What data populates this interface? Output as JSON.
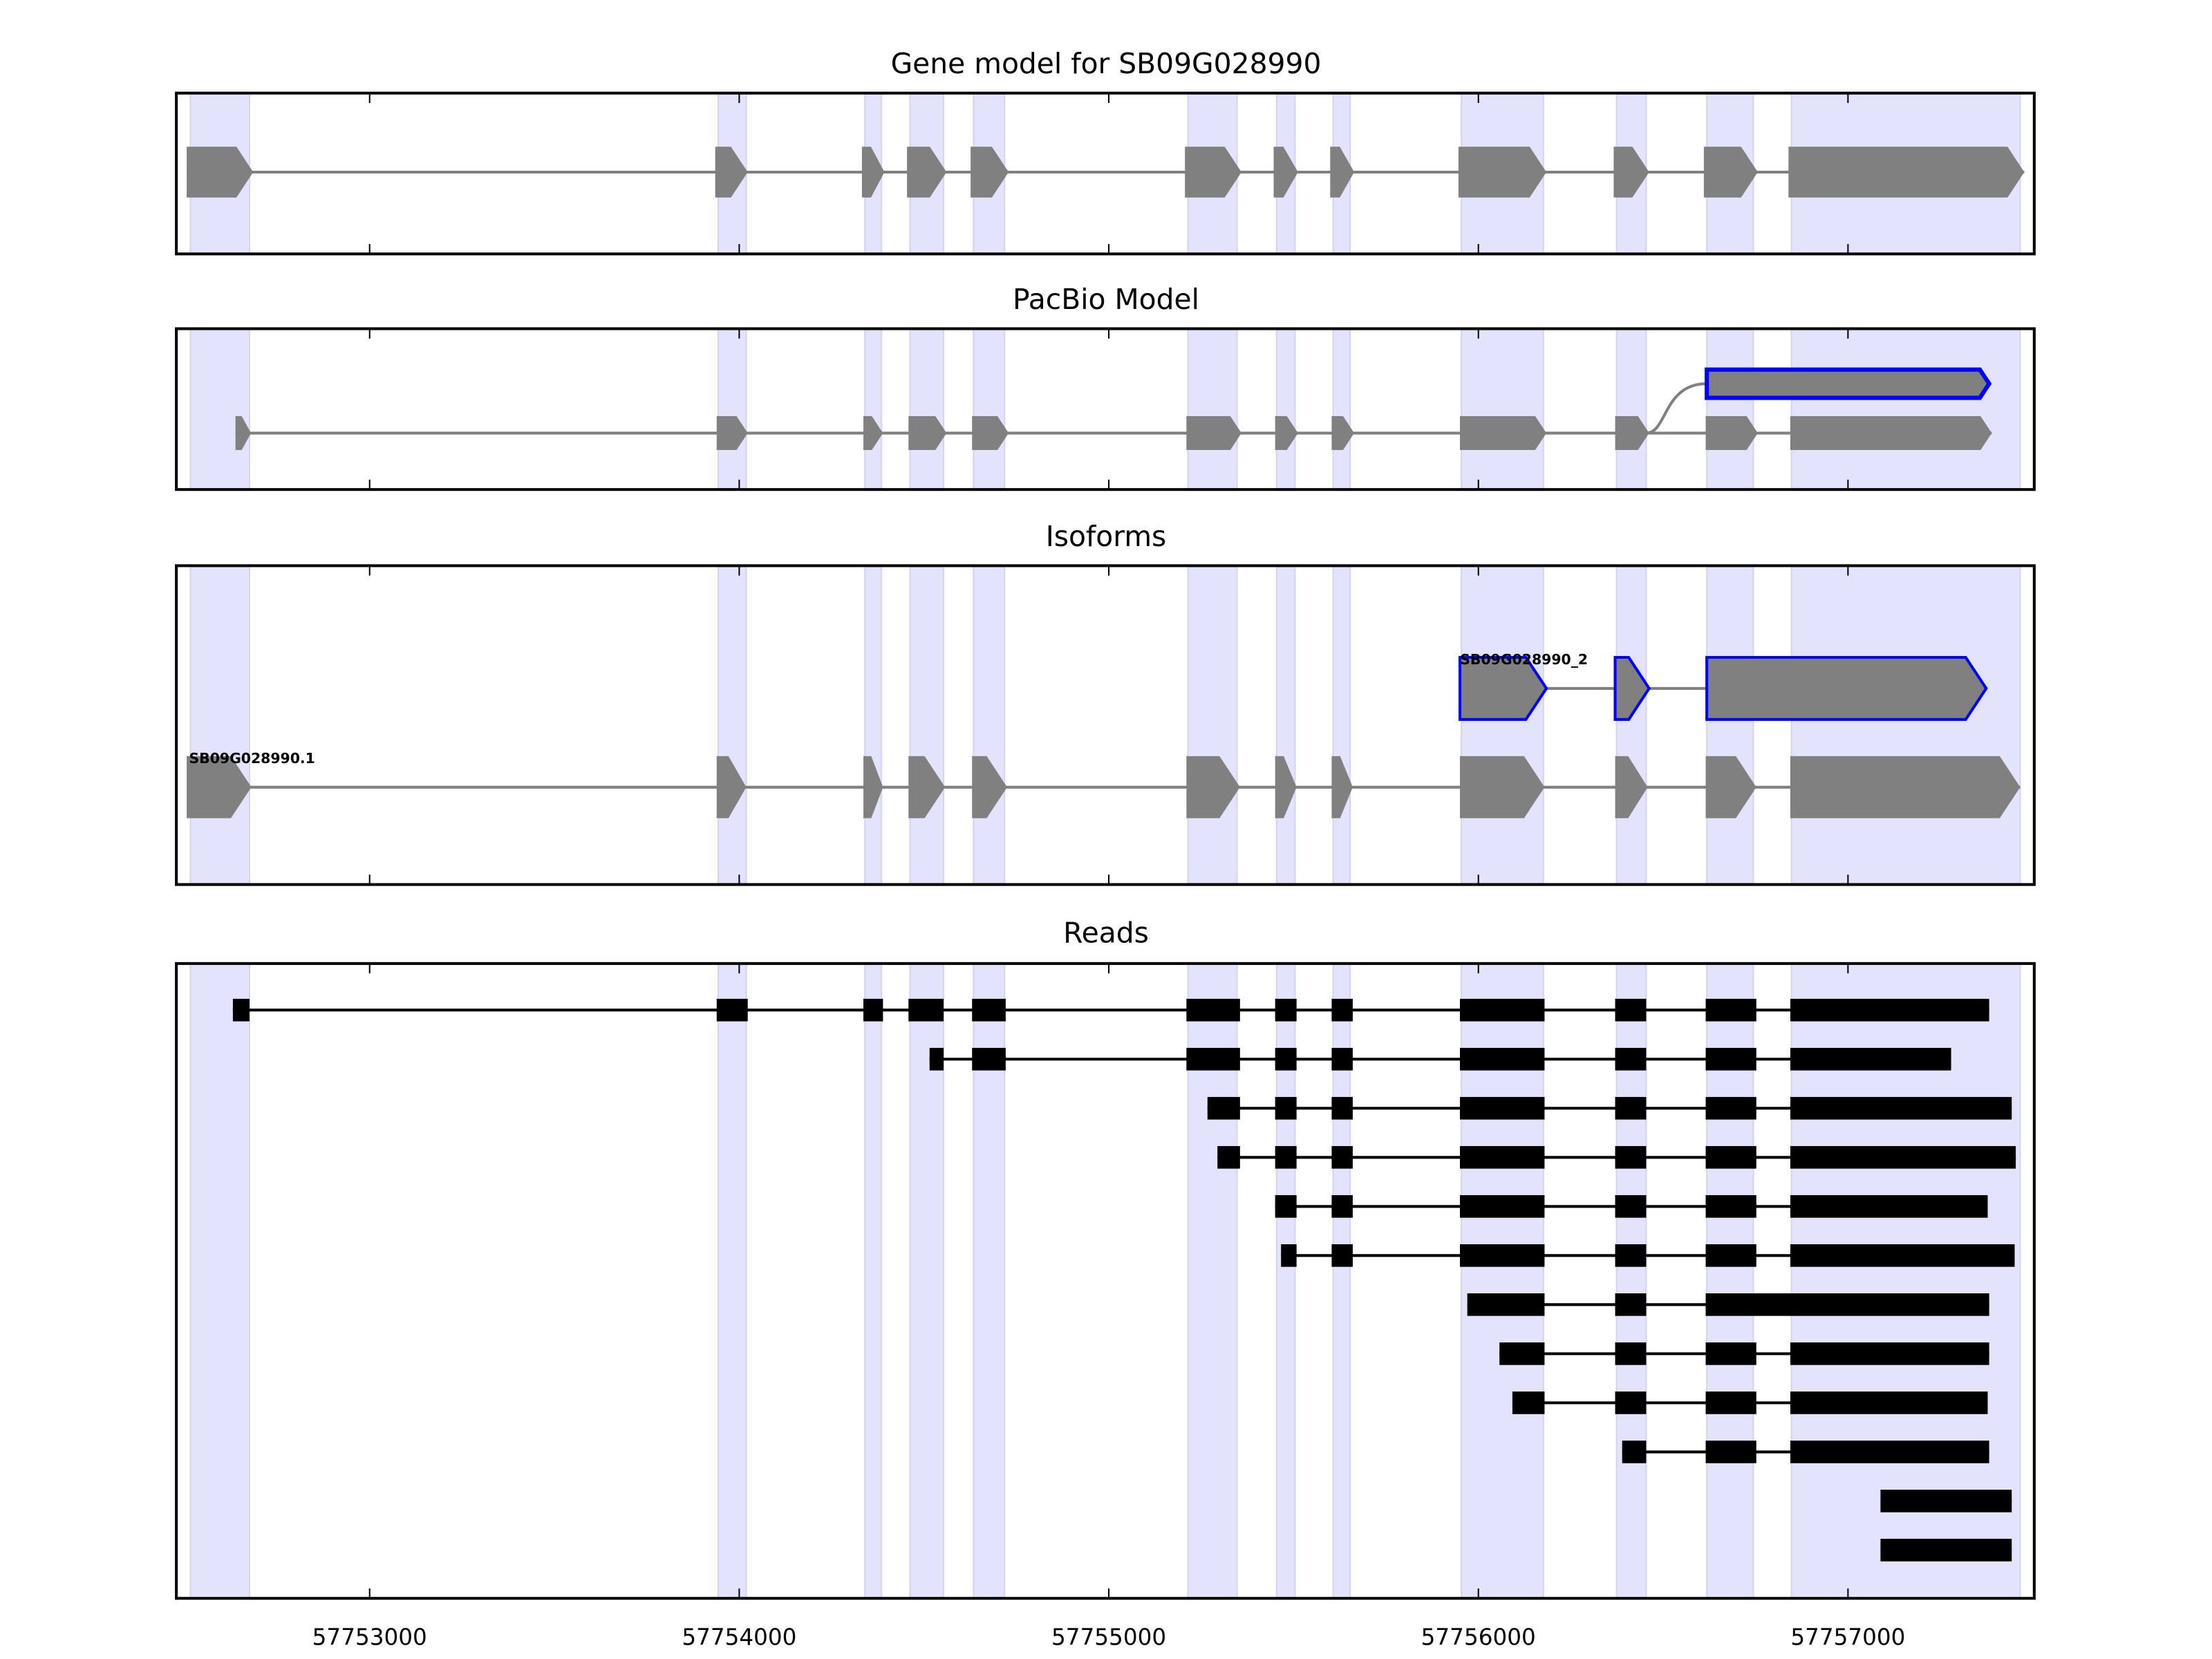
{
  "chart_data": [
    {
      "type": "gene-track",
      "title": "Gene model for SB09G028990",
      "xlim": [
        57752477,
        57757504
      ],
      "shaded_exons": [
        [
          57752515,
          57752675
        ],
        [
          57753943,
          57754019
        ],
        [
          57754340,
          57754385
        ],
        [
          57754462,
          57754553
        ],
        [
          57754634,
          57754718
        ],
        [
          57755214,
          57755347
        ],
        [
          57755454,
          57755504
        ],
        [
          57755607,
          57755653
        ],
        [
          57755954,
          57756176
        ],
        [
          57756374,
          57756454
        ],
        [
          57756618,
          57756744
        ],
        [
          57756847,
          57757466
        ]
      ],
      "tracks": [
        {
          "exons": [
            [
              57752505,
              57752685
            ],
            [
              57753935,
              57754023
            ],
            [
              57754332,
              57754393
            ],
            [
              57754454,
              57754561
            ],
            [
              57754626,
              57754729
            ],
            [
              57755206,
              57755359
            ],
            [
              57755446,
              57755512
            ],
            [
              57755599,
              57755664
            ],
            [
              57755946,
              57756184
            ],
            [
              57756366,
              57756462
            ],
            [
              57756610,
              57756756
            ],
            [
              57756839,
              57757477
            ]
          ],
          "color": "#808080",
          "outline": null
        }
      ]
    },
    {
      "type": "gene-track",
      "title": "PacBio Model",
      "tracks": [
        {
          "exons": [
            [
              57756618,
              57757382
            ]
          ],
          "color": "#808080",
          "outline": "#0000ff",
          "branch_from": 57756454
        },
        {
          "exons": [
            [
              57752637,
              57752679
            ],
            [
              57753939,
              57754023
            ],
            [
              57754336,
              57754389
            ],
            [
              57754458,
              57754561
            ],
            [
              57754630,
              57754729
            ],
            [
              57755210,
              57755359
            ],
            [
              57755450,
              57755512
            ],
            [
              57755603,
              57755664
            ],
            [
              57755950,
              57756184
            ],
            [
              57756370,
              57756462
            ],
            [
              57756615,
              57756756
            ],
            [
              57756844,
              57757389
            ]
          ],
          "color": "#808080",
          "outline": null
        }
      ]
    },
    {
      "type": "gene-track",
      "title": "Isoforms",
      "tracks": [
        {
          "label": "SB09G028990_2",
          "exons": [
            [
              57755950,
              57756184
            ],
            [
              57756370,
              57756462
            ],
            [
              57756618,
              57757374
            ]
          ],
          "color": "#808080",
          "outline": "#0000ff"
        },
        {
          "label": "SB09G028990.1",
          "exons": [
            [
              57752505,
              57752680
            ],
            [
              57753939,
              57754019
            ],
            [
              57754336,
              57754389
            ],
            [
              57754458,
              57754557
            ],
            [
              57754630,
              57754725
            ],
            [
              57755210,
              57755355
            ],
            [
              57755450,
              57755508
            ],
            [
              57755603,
              57755660
            ],
            [
              57755950,
              57756179
            ],
            [
              57756370,
              57756458
            ],
            [
              57756615,
              57756752
            ],
            [
              57756844,
              57757466
            ]
          ],
          "color": "#808080",
          "outline": null
        }
      ]
    },
    {
      "type": "reads",
      "title": "Reads",
      "xticks": [
        57753000,
        57754000,
        57755000,
        57756000,
        57757000
      ],
      "xtick_labels": [
        "57753000",
        "57754000",
        "57755000",
        "57756000",
        "57757000"
      ],
      "reads": [
        [
          [
            57752630,
            57752675
          ],
          [
            57753939,
            57754023
          ],
          [
            57754336,
            57754389
          ],
          [
            57754458,
            57754553
          ],
          [
            57754630,
            57754721
          ],
          [
            57755210,
            57755355
          ],
          [
            57755450,
            57755508
          ],
          [
            57755603,
            57755660
          ],
          [
            57755950,
            57756179
          ],
          [
            57756370,
            57756454
          ],
          [
            57756615,
            57756752
          ],
          [
            57756844,
            57757382
          ]
        ],
        [
          [
            57754515,
            57754553
          ],
          [
            57754630,
            57754721
          ],
          [
            57755210,
            57755355
          ],
          [
            57755450,
            57755508
          ],
          [
            57755603,
            57755660
          ],
          [
            57755950,
            57756179
          ],
          [
            57756370,
            57756454
          ],
          [
            57756615,
            57756752
          ],
          [
            57756844,
            57757279
          ]
        ],
        [
          [
            57755267,
            57755355
          ],
          [
            57755450,
            57755508
          ],
          [
            57755603,
            57755660
          ],
          [
            57755950,
            57756179
          ],
          [
            57756370,
            57756454
          ],
          [
            57756615,
            57756752
          ],
          [
            57756844,
            57757443
          ]
        ],
        [
          [
            57755294,
            57755355
          ],
          [
            57755450,
            57755508
          ],
          [
            57755603,
            57755660
          ],
          [
            57755950,
            57756179
          ],
          [
            57756370,
            57756454
          ],
          [
            57756615,
            57756752
          ],
          [
            57756844,
            57757454
          ]
        ],
        [
          [
            57755450,
            57755508
          ],
          [
            57755603,
            57755660
          ],
          [
            57755950,
            57756179
          ],
          [
            57756370,
            57756454
          ],
          [
            57756615,
            57756752
          ],
          [
            57756844,
            57757378
          ]
        ],
        [
          [
            57755466,
            57755508
          ],
          [
            57755603,
            57755660
          ],
          [
            57755950,
            57756179
          ],
          [
            57756370,
            57756454
          ],
          [
            57756615,
            57756752
          ],
          [
            57756844,
            57757451
          ]
        ],
        [
          [
            57755970,
            57756179
          ],
          [
            57756370,
            57756454
          ],
          [
            57756615,
            57757382
          ]
        ],
        [
          [
            57756057,
            57756179
          ],
          [
            57756370,
            57756454
          ],
          [
            57756615,
            57756752
          ],
          [
            57756844,
            57757382
          ]
        ],
        [
          [
            57756092,
            57756179
          ],
          [
            57756370,
            57756454
          ],
          [
            57756615,
            57756752
          ],
          [
            57756844,
            57757378
          ]
        ],
        [
          [
            57756389,
            57756454
          ],
          [
            57756615,
            57756752
          ],
          [
            57756844,
            57757382
          ]
        ],
        [
          [
            57757088,
            57757443
          ]
        ],
        [
          [
            57757088,
            57757443
          ]
        ]
      ]
    }
  ],
  "colors": {
    "shade": "#e3e3fc",
    "exon": "#808080",
    "highlight": "#0000ff",
    "read": "#000000"
  }
}
